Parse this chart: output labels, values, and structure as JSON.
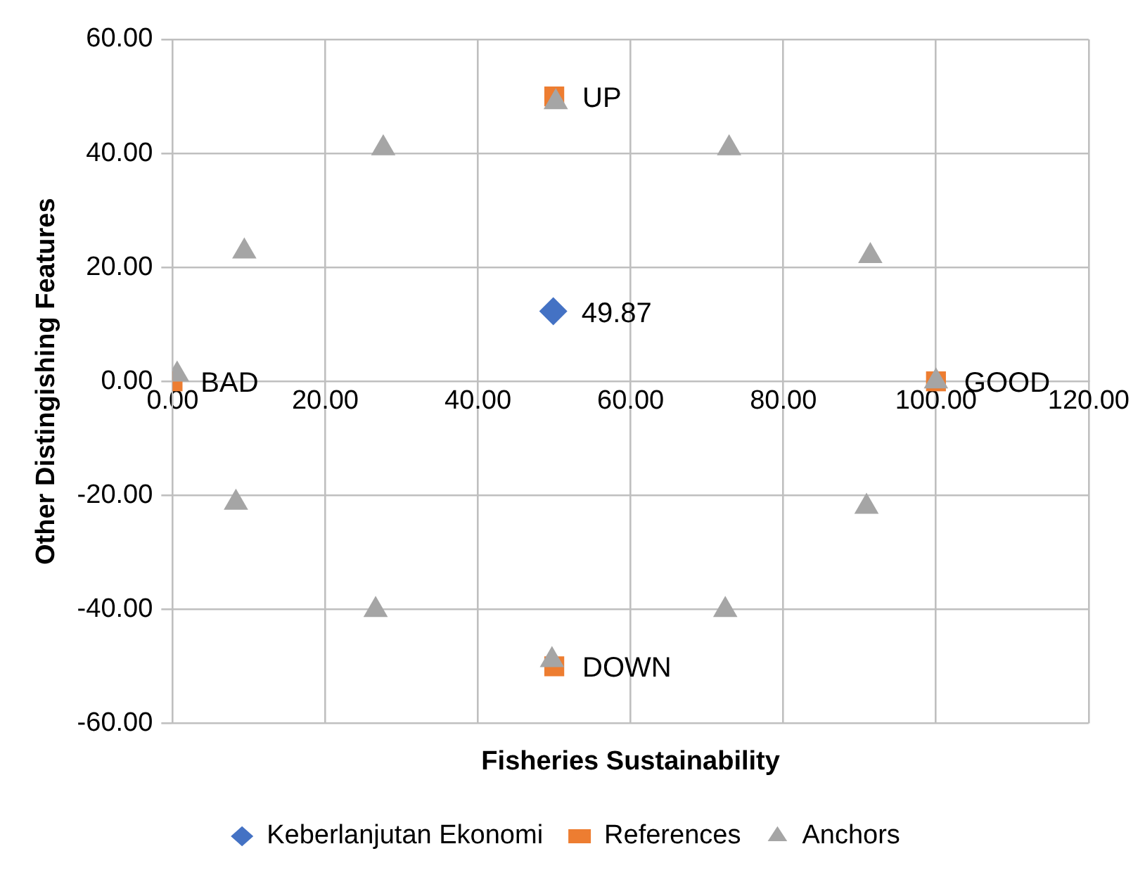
{
  "chart_data": {
    "type": "scatter",
    "xlabel": "Fisheries Sustainability",
    "ylabel": "Other Distingishing Features",
    "xlim": [
      0,
      120
    ],
    "xticks": [
      {
        "value": 0,
        "label": "0.00"
      },
      {
        "value": 20,
        "label": "20.00"
      },
      {
        "value": 40,
        "label": "40.00"
      },
      {
        "value": 60,
        "label": "60.00"
      },
      {
        "value": 80,
        "label": "80.00"
      },
      {
        "value": 100,
        "label": "100.00"
      },
      {
        "value": 120,
        "label": "120.00"
      }
    ],
    "ylim": [
      -60,
      60
    ],
    "yticks": [
      {
        "value": -60,
        "label": "-60.00"
      },
      {
        "value": -40,
        "label": "-40.00"
      },
      {
        "value": -20,
        "label": "-20.00"
      },
      {
        "value": 0,
        "label": "0.00"
      },
      {
        "value": 20,
        "label": "20.00"
      },
      {
        "value": 40,
        "label": "40.00"
      },
      {
        "value": 60,
        "label": "60.00"
      }
    ],
    "grid": true,
    "legend": "bottom",
    "annotations": [
      {
        "text": "49.87",
        "x": 49.87,
        "y": 12.3
      }
    ],
    "series": [
      {
        "name": "Keberlanjutan Ekonomi",
        "color": "#4472c4",
        "marker": "diamond",
        "x": [
          49.87
        ],
        "values": [
          12.3
        ]
      },
      {
        "name": "References",
        "color": "#ed7d31",
        "marker": "square",
        "x": [
          0,
          100,
          50,
          50
        ],
        "values": [
          0,
          0,
          50,
          -50
        ],
        "value_labels": [
          "BAD",
          "GOOD",
          "UP",
          "DOWN"
        ]
      },
      {
        "name": "Anchors",
        "color": "#a5a5a5",
        "marker": "triangle",
        "x": [
          0.6,
          100,
          50.2,
          49.7,
          27.6,
          72.9,
          9.4,
          91.4,
          8.3,
          90.9,
          26.6,
          72.4
        ],
        "values": [
          1.2,
          0,
          49,
          -48.9,
          40.9,
          40.9,
          22.8,
          22,
          -21.3,
          -22,
          -40.1,
          -40.1
        ]
      }
    ]
  }
}
